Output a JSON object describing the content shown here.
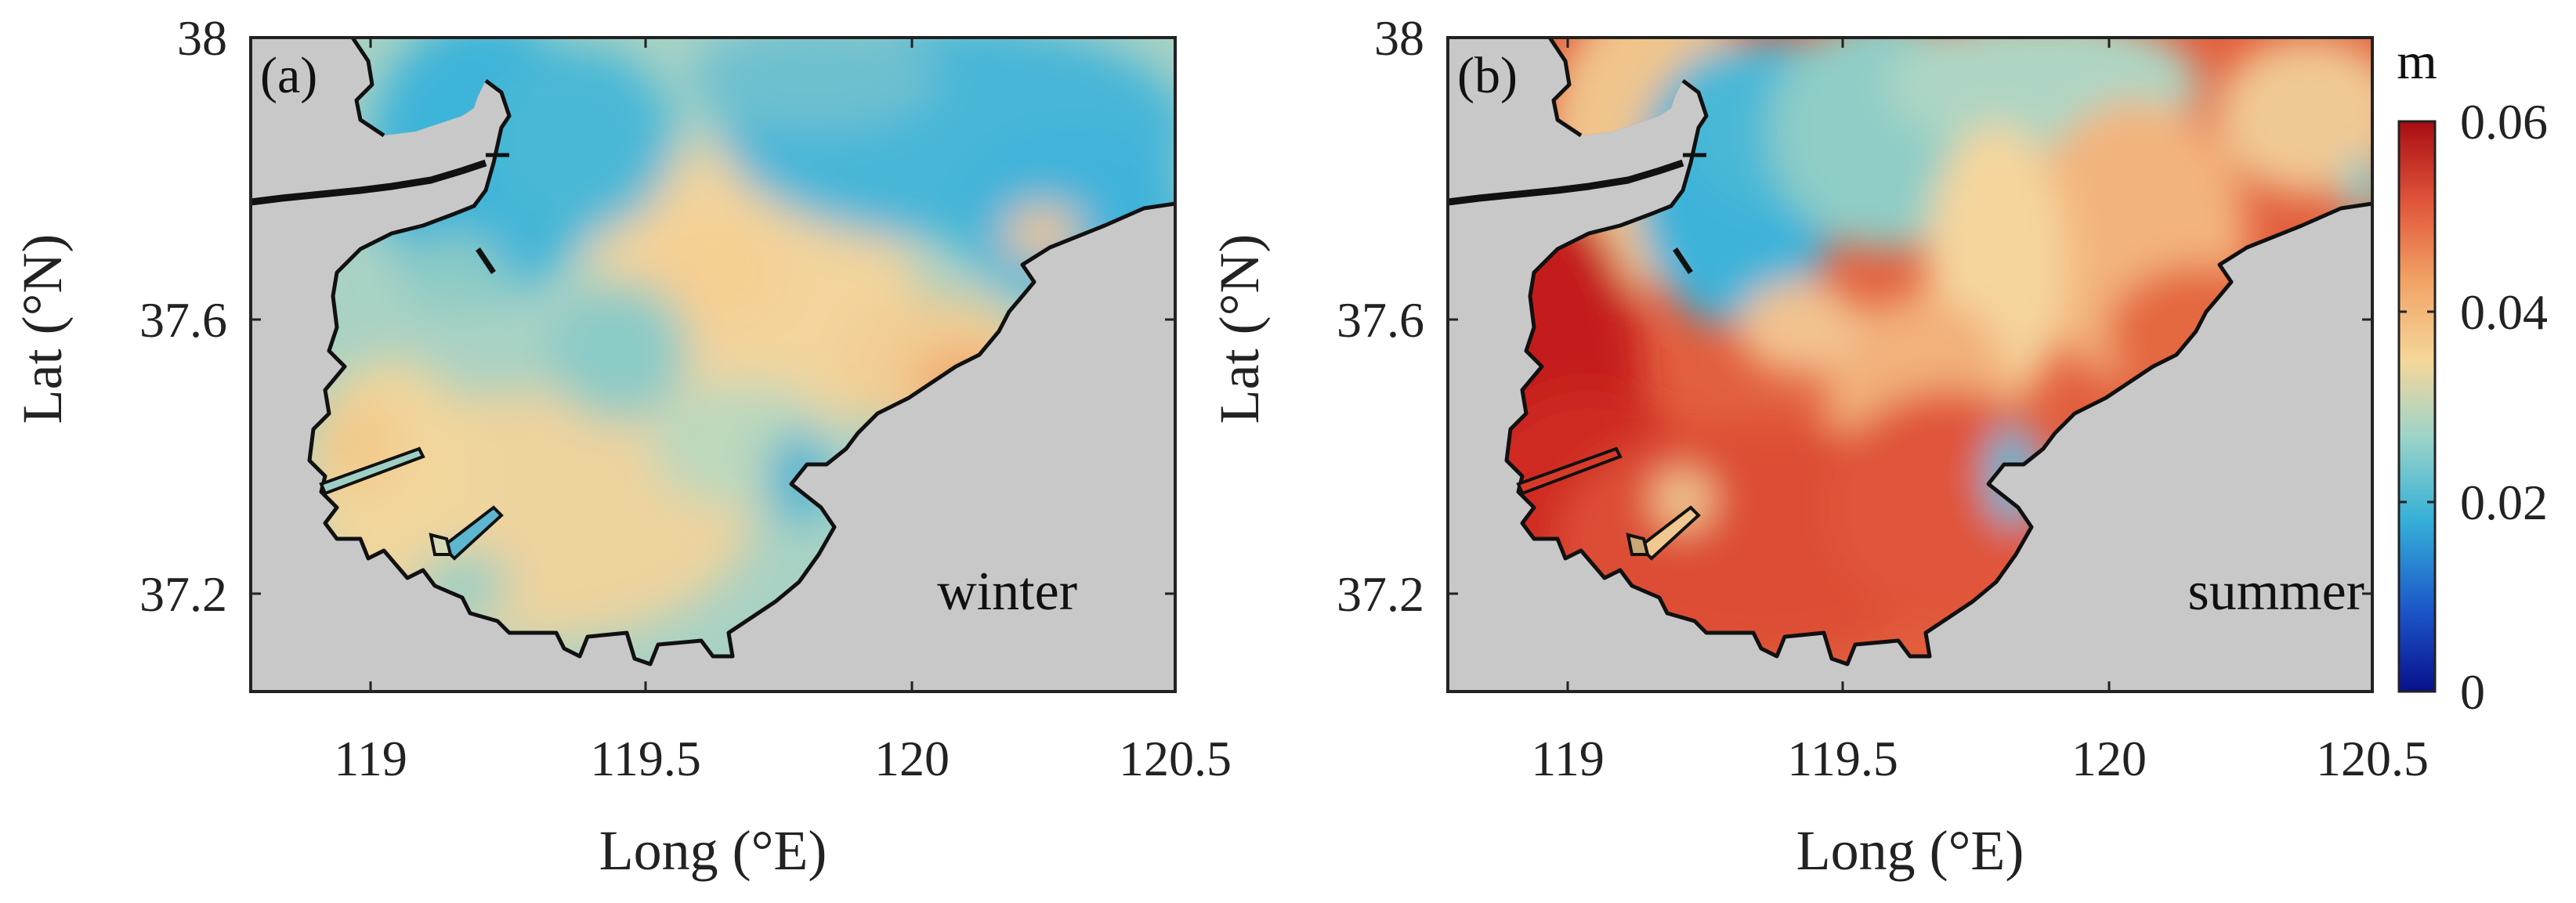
{
  "panels": [
    {
      "id": "a",
      "label": "(a)",
      "season": "winter",
      "xlabel": "Long (°E)",
      "ylabel": "Lat (°N)",
      "xticks": [
        "119",
        "119.5",
        "120",
        "120.5"
      ],
      "yticks": [
        "38",
        "37.6",
        "37.2"
      ],
      "field_description_level": "mostly 0.02–0.035 m"
    },
    {
      "id": "b",
      "label": "(b)",
      "season": "summer",
      "xlabel": "Long (°E)",
      "ylabel": "Lat (°N)",
      "xticks": [
        "119",
        "119.5",
        "120",
        "120.5"
      ],
      "yticks": [
        "38",
        "37.6",
        "37.2"
      ],
      "field_description_level": "mostly 0.04–0.06 m"
    }
  ],
  "colorbar": {
    "unit": "m",
    "ticks": [
      "0.06",
      "0.04",
      "0.02",
      "0"
    ],
    "range": [
      0,
      0.06
    ],
    "colors": [
      "#08108c",
      "#1b6fd0",
      "#35b0d8",
      "#9ed4c8",
      "#f5d79a",
      "#f2a366",
      "#e0543a",
      "#a80d12"
    ]
  },
  "colors": {
    "land": "#c8c8c8",
    "coast": "#111111",
    "blue": "#3db4d9",
    "teal": "#8cc9c3",
    "sand": "#efd39c",
    "orange": "#f0a56a",
    "red": "#d9412f",
    "darkred": "#b01414"
  }
}
